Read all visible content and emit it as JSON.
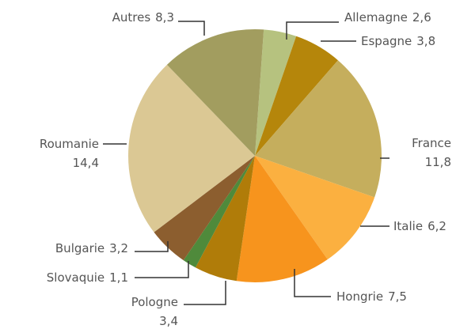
{
  "chart_data": {
    "type": "pie",
    "categories": [
      "Allemagne",
      "Espagne",
      "France",
      "Italie",
      "Hongrie",
      "Pologne",
      "Slovaquie",
      "Bulgarie",
      "Roumanie",
      "Autres"
    ],
    "values": [
      2.6,
      3.8,
      11.8,
      6.2,
      7.5,
      3.4,
      1.1,
      3.2,
      14.4,
      8.3
    ],
    "value_labels": [
      "2,6",
      "3,8",
      "11,8",
      "6,2",
      "7,5",
      "3,4",
      "1,1",
      "3,2",
      "14,4",
      "8,3"
    ],
    "colors": [
      "#b6c27f",
      "#b5860b",
      "#c5ae5d",
      "#fbb040",
      "#f7941d",
      "#b07c09",
      "#4f8a3b",
      "#8c5e2f",
      "#dbc894",
      "#a29d5f"
    ]
  }
}
